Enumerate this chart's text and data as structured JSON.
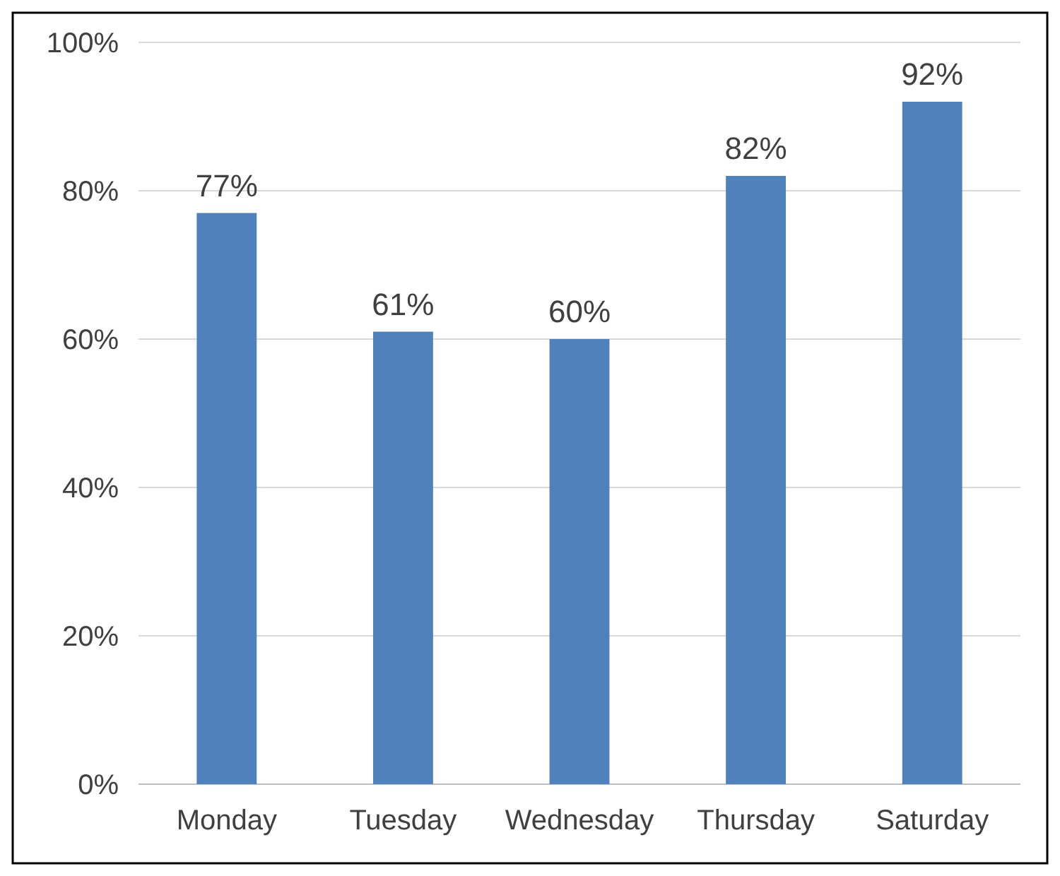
{
  "chart_data": {
    "type": "bar",
    "categories": [
      "Monday",
      "Tuesday",
      "Wednesday",
      "Thursday",
      "Saturday"
    ],
    "values": [
      77,
      61,
      60,
      82,
      92
    ],
    "value_labels": [
      "77%",
      "61%",
      "60%",
      "82%",
      "92%"
    ],
    "color": "#4f81bd",
    "ylim": [
      0,
      100
    ],
    "yticks": [
      {
        "value": 0,
        "label": "0%"
      },
      {
        "value": 20,
        "label": "20%"
      },
      {
        "value": 40,
        "label": "40%"
      },
      {
        "value": 60,
        "label": "60%"
      },
      {
        "value": 80,
        "label": "80%"
      },
      {
        "value": 100,
        "label": "100%"
      }
    ],
    "grid": "y"
  }
}
